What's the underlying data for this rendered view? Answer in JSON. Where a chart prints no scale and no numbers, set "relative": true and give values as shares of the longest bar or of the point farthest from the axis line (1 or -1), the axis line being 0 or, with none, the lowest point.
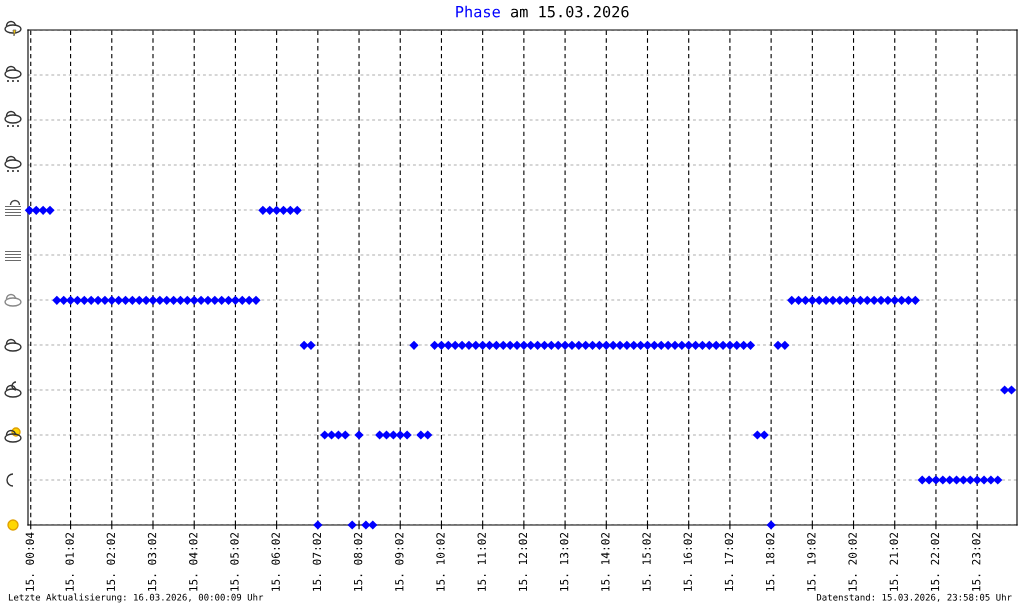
{
  "chart_data": {
    "type": "scatter",
    "title": "Phase am 15.03.2026",
    "relative": true,
    "grid": true,
    "marker": "diamond",
    "xlim": [
      "2026-03-15T00:00",
      "2026-03-16T00:00"
    ],
    "xticks": [
      {
        "value": "2026-03-15T00:04",
        "label": "15. 00:04"
      },
      {
        "value": "2026-03-15T01:02",
        "label": "15. 01:02"
      },
      {
        "value": "2026-03-15T02:02",
        "label": "15. 02:02"
      },
      {
        "value": "2026-03-15T03:02",
        "label": "15. 03:02"
      },
      {
        "value": "2026-03-15T04:02",
        "label": "15. 04:02"
      },
      {
        "value": "2026-03-15T05:02",
        "label": "15. 05:02"
      },
      {
        "value": "2026-03-15T06:02",
        "label": "15. 06:02"
      },
      {
        "value": "2026-03-15T07:02",
        "label": "15. 07:02"
      },
      {
        "value": "2026-03-15T08:02",
        "label": "15. 08:02"
      },
      {
        "value": "2026-03-15T09:02",
        "label": "15. 09:02"
      },
      {
        "value": "2026-03-15T10:02",
        "label": "15. 10:02"
      },
      {
        "value": "2026-03-15T11:02",
        "label": "15. 11:02"
      },
      {
        "value": "2026-03-15T12:02",
        "label": "15. 12:02"
      },
      {
        "value": "2026-03-15T13:02",
        "label": "15. 13:02"
      },
      {
        "value": "2026-03-15T14:02",
        "label": "15. 14:02"
      },
      {
        "value": "2026-03-15T15:02",
        "label": "15. 15:02"
      },
      {
        "value": "2026-03-15T16:02",
        "label": "15. 16:02"
      },
      {
        "value": "2026-03-15T17:02",
        "label": "15. 17:02"
      },
      {
        "value": "2026-03-15T18:02",
        "label": "15. 18:02"
      },
      {
        "value": "2026-03-15T19:02",
        "label": "15. 19:02"
      },
      {
        "value": "2026-03-15T20:02",
        "label": "15. 20:02"
      },
      {
        "value": "2026-03-15T21:02",
        "label": "15. 21:02"
      },
      {
        "value": "2026-03-15T22:02",
        "label": "15. 22:02"
      },
      {
        "value": "2026-03-15T23:02",
        "label": "15. 23:02"
      }
    ],
    "annotations": [
      "Letzte Aktualisierung: 16.03.2026, 00:00:09 Uhr",
      "Datenstand: 15.03.2026, 23:58:05 Uhr"
    ],
    "series": [
      {
        "color": "#0000ff",
        "x": [
          "2026-03-15T00:02",
          "2026-03-15T00:12",
          "2026-03-15T00:22",
          "2026-03-15T00:32",
          "2026-03-15T00:42",
          "2026-03-15T00:52",
          "2026-03-15T01:02",
          "2026-03-15T01:12",
          "2026-03-15T01:22",
          "2026-03-15T01:32",
          "2026-03-15T01:42",
          "2026-03-15T01:52",
          "2026-03-15T02:02",
          "2026-03-15T02:12",
          "2026-03-15T02:22",
          "2026-03-15T02:32",
          "2026-03-15T02:42",
          "2026-03-15T02:52",
          "2026-03-15T03:02",
          "2026-03-15T03:12",
          "2026-03-15T03:22",
          "2026-03-15T03:32",
          "2026-03-15T03:42",
          "2026-03-15T03:52",
          "2026-03-15T04:02",
          "2026-03-15T04:12",
          "2026-03-15T04:22",
          "2026-03-15T04:32",
          "2026-03-15T04:42",
          "2026-03-15T04:52",
          "2026-03-15T05:02",
          "2026-03-15T05:12",
          "2026-03-15T05:22",
          "2026-03-15T05:32",
          "2026-03-15T05:42",
          "2026-03-15T05:52",
          "2026-03-15T06:02",
          "2026-03-15T06:12",
          "2026-03-15T06:22",
          "2026-03-15T06:32",
          "2026-03-15T06:42",
          "2026-03-15T06:52",
          "2026-03-15T07:02",
          "2026-03-15T07:12",
          "2026-03-15T07:22",
          "2026-03-15T07:32",
          "2026-03-15T07:42",
          "2026-03-15T07:52",
          "2026-03-15T08:02",
          "2026-03-15T08:12",
          "2026-03-15T08:22",
          "2026-03-15T08:32",
          "2026-03-15T08:42",
          "2026-03-15T08:52",
          "2026-03-15T09:02",
          "2026-03-15T09:12",
          "2026-03-15T09:22",
          "2026-03-15T09:32",
          "2026-03-15T09:42",
          "2026-03-15T09:52",
          "2026-03-15T10:02",
          "2026-03-15T10:12",
          "2026-03-15T10:22",
          "2026-03-15T10:32",
          "2026-03-15T10:42",
          "2026-03-15T10:52",
          "2026-03-15T11:02",
          "2026-03-15T11:12",
          "2026-03-15T11:22",
          "2026-03-15T11:32",
          "2026-03-15T11:42",
          "2026-03-15T11:52",
          "2026-03-15T12:02",
          "2026-03-15T12:12",
          "2026-03-15T12:22",
          "2026-03-15T12:32",
          "2026-03-15T12:42",
          "2026-03-15T12:52",
          "2026-03-15T13:02",
          "2026-03-15T13:12",
          "2026-03-15T13:22",
          "2026-03-15T13:32",
          "2026-03-15T13:42",
          "2026-03-15T13:52",
          "2026-03-15T14:02",
          "2026-03-15T14:12",
          "2026-03-15T14:22",
          "2026-03-15T14:32",
          "2026-03-15T14:42",
          "2026-03-15T14:52",
          "2026-03-15T15:02",
          "2026-03-15T15:12",
          "2026-03-15T15:22",
          "2026-03-15T15:32",
          "2026-03-15T15:42",
          "2026-03-15T15:52",
          "2026-03-15T16:02",
          "2026-03-15T16:12",
          "2026-03-15T16:22",
          "2026-03-15T16:32",
          "2026-03-15T16:42",
          "2026-03-15T16:52",
          "2026-03-15T17:02",
          "2026-03-15T17:12",
          "2026-03-15T17:22",
          "2026-03-15T17:32",
          "2026-03-15T17:42",
          "2026-03-15T17:52",
          "2026-03-15T18:02",
          "2026-03-15T18:12",
          "2026-03-15T18:22",
          "2026-03-15T18:32",
          "2026-03-15T18:42",
          "2026-03-15T18:52",
          "2026-03-15T19:02",
          "2026-03-15T19:12",
          "2026-03-15T19:22",
          "2026-03-15T19:32",
          "2026-03-15T19:42",
          "2026-03-15T19:52",
          "2026-03-15T20:02",
          "2026-03-15T20:12",
          "2026-03-15T20:22",
          "2026-03-15T20:32",
          "2026-03-15T20:42",
          "2026-03-15T20:52",
          "2026-03-15T21:02",
          "2026-03-15T21:12",
          "2026-03-15T21:22",
          "2026-03-15T21:32",
          "2026-03-15T21:42",
          "2026-03-15T21:52",
          "2026-03-15T22:02",
          "2026-03-15T22:12",
          "2026-03-15T22:22",
          "2026-03-15T22:32",
          "2026-03-15T22:42",
          "2026-03-15T22:52",
          "2026-03-15T23:02",
          "2026-03-15T23:12",
          "2026-03-15T23:22",
          "2026-03-15T23:32",
          "2026-03-15T23:42",
          "2026-03-15T23:52"
        ],
        "values": [
          1,
          1,
          1,
          1,
          0.714,
          0.714,
          0.714,
          0.714,
          0.714,
          0.714,
          0.714,
          0.714,
          0.714,
          0.714,
          0.714,
          0.714,
          0.714,
          0.714,
          0.714,
          0.714,
          0.714,
          0.714,
          0.714,
          0.714,
          0.714,
          0.714,
          0.714,
          0.714,
          0.714,
          0.714,
          0.714,
          0.714,
          0.714,
          0.714,
          1,
          1,
          1,
          1,
          1,
          1,
          0.571,
          0.571,
          0,
          0.286,
          0.286,
          0.286,
          0.286,
          0,
          0.286,
          0,
          0,
          0.286,
          0.286,
          0.286,
          0.286,
          0.286,
          0.571,
          0.286,
          0.286,
          0.571,
          0.571,
          0.571,
          0.571,
          0.571,
          0.571,
          0.571,
          0.571,
          0.571,
          0.571,
          0.571,
          0.571,
          0.571,
          0.571,
          0.571,
          0.571,
          0.571,
          0.571,
          0.571,
          0.571,
          0.571,
          0.571,
          0.571,
          0.571,
          0.571,
          0.571,
          0.571,
          0.571,
          0.571,
          0.571,
          0.571,
          0.571,
          0.571,
          0.571,
          0.571,
          0.571,
          0.571,
          0.571,
          0.571,
          0.571,
          0.571,
          0.571,
          0.571,
          0.571,
          0.571,
          0.571,
          0.571,
          0.286,
          0.286,
          0,
          0.571,
          0.571,
          0.714,
          0.714,
          0.714,
          0.714,
          0.714,
          0.714,
          0.714,
          0.714,
          0.714,
          0.714,
          0.714,
          0.714,
          0.714,
          0.714,
          0.714,
          0.714,
          0.714,
          0.714,
          0.714,
          0.143,
          0.143,
          0.143,
          0.143,
          0.143,
          0.143,
          0.143,
          0.143,
          0.143,
          0.143,
          0.143,
          0.143,
          0.429,
          0.429
        ]
      }
    ]
  }
}
